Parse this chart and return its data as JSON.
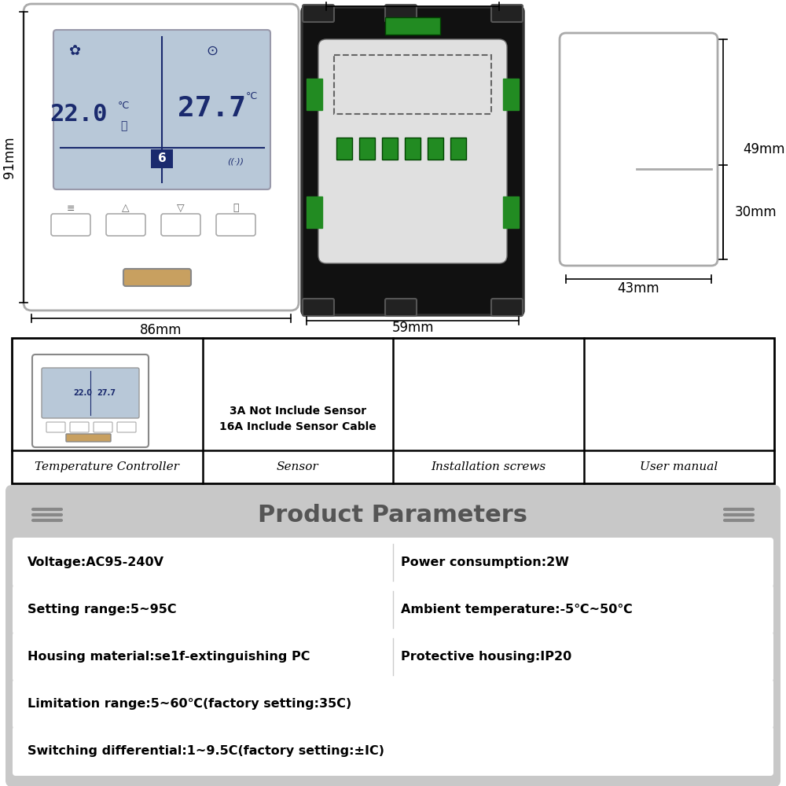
{
  "bg_color": "#ffffff",
  "fig_w": 10,
  "fig_h": 10,
  "dpi": 100,
  "params_title": "Product Parameters",
  "params_title_color": "#555555",
  "params_data": [
    [
      "Voltage:AC95-240V",
      "Power consumption:2W"
    ],
    [
      "Setting range:5~95C",
      "Ambient temperature:-5℃~50℃"
    ],
    [
      "Housing material:se1f-extinguishing PC",
      "Protective housing:IP20"
    ],
    [
      "Limitation range:5~60℃(factory setting:35C)",
      ""
    ],
    [
      "Switching differential:1~9.5C(factory setting:±IC)",
      ""
    ]
  ],
  "accessories": [
    "Temperature Controller",
    "Sensor",
    "Installation screws",
    "User manual"
  ],
  "sensor_note": "3A Not Include Sensor\n16A Include Sensor Cable",
  "dim_91mm": "91mm",
  "dim_86mm": "86mm",
  "dim_49mm_top": "49mm",
  "dim_49mm_bot": "49mm",
  "dim_59mm": "59mm",
  "dim_30mm": "30mm",
  "dim_43mm": "43mm",
  "lcd_color": "#b8c8d8",
  "lcd_text_color": "#1a2a6e",
  "device_edge": "#aaaaaa",
  "back_body_color": "#111111",
  "pcb_color": "#e0e0e0",
  "green_color": "#228B22",
  "table_border": "#000000",
  "params_bg": "#c8c8c8",
  "row_bg": "#ffffff",
  "row_font_size": 11.5,
  "title_font_size": 22
}
